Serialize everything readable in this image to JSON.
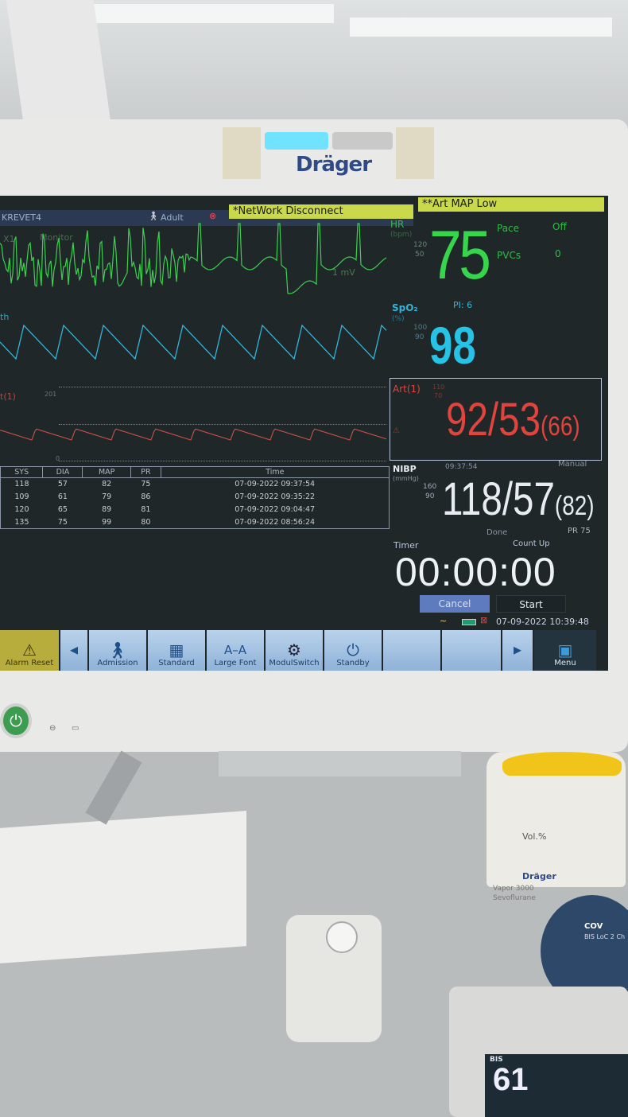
{
  "brand": "Dräger",
  "topbar": {
    "bed": "KREVET4",
    "patient_type": "Adult",
    "alarm1": "*NetWork Disconnect",
    "alarm2": "**Art MAP Low"
  },
  "ecg": {
    "lead": "X1",
    "mode": "Monitor",
    "scale": "1 mV"
  },
  "hr": {
    "label": "HR",
    "unit": "(bpm)",
    "high": "120",
    "low": "50",
    "value": "75",
    "pace_label": "Pace",
    "pace_value": "Off",
    "pvcs_label": "PVCs",
    "pvcs_value": "0"
  },
  "pleth": {
    "label": "th"
  },
  "spo2": {
    "label": "SpO₂",
    "unit": "(%)",
    "pi": "PI: 6",
    "high": "100",
    "low": "90",
    "value": "98"
  },
  "art_wave": {
    "label": "t(1)",
    "scale_top": "201",
    "scale_bottom": "0"
  },
  "art": {
    "label": "Art(1)",
    "high": "110",
    "low": "70",
    "value": "92/53",
    "mean": "(66)"
  },
  "nibp_table": {
    "headers": [
      "SYS",
      "DIA",
      "MAP",
      "PR",
      "Time"
    ],
    "rows": [
      [
        "118",
        "57",
        "82",
        "75",
        "07-09-2022 09:37:54"
      ],
      [
        "109",
        "61",
        "79",
        "86",
        "07-09-2022 09:35:22"
      ],
      [
        "120",
        "65",
        "89",
        "81",
        "07-09-2022 09:04:47"
      ],
      [
        "135",
        "75",
        "99",
        "80",
        "07-09-2022 08:56:24"
      ]
    ]
  },
  "nibp": {
    "label": "NIBP",
    "unit": "(mmHg)",
    "time": "09:37:54",
    "mode": "Manual",
    "high": "160",
    "low": "90",
    "value": "118/57",
    "mean": "(82)",
    "status": "Done",
    "pr": "PR 75"
  },
  "timer": {
    "label": "Timer",
    "mode": "Count Up",
    "value": "00:00:00",
    "cancel": "Cancel",
    "start": "Start"
  },
  "status": {
    "datetime": "07-09-2022 10:39:48"
  },
  "toolbar": {
    "alarm_reset": "Alarm Reset",
    "admission": "Admission",
    "standard": "Standard",
    "large_font": "Large Font",
    "modulswitch": "ModulSwitch",
    "standby": "Standby",
    "menu": "Menu"
  },
  "equipment": {
    "vaporizer_brand": "Dräger",
    "vaporizer_model": "Vapor 3000",
    "vaporizer_agent": "Sevoflurane",
    "dial_label": "Vol.%",
    "bis_brand": "COV",
    "bis_sensor": "BIS LoC 2 Ch",
    "bis_label": "BIS",
    "bis_value": "61"
  },
  "colors": {
    "hr": "#35d64b",
    "spo2": "#27c3e6",
    "art": "#e0443c",
    "nibp": "#e8ecf2",
    "alarm": "#c9d94a"
  }
}
